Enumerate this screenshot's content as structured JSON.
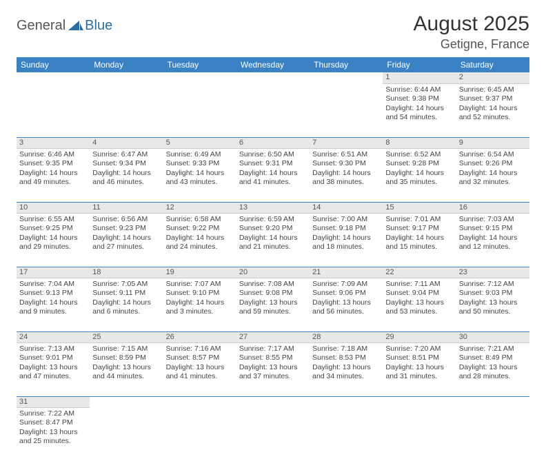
{
  "logo": {
    "general": "General",
    "blue": "Blue"
  },
  "title": "August 2025",
  "location": "Getigne, France",
  "colors": {
    "header_bg": "#3b82c4",
    "header_text": "#ffffff",
    "daynum_bg": "#e8e8e8",
    "rule": "#3b82c4",
    "text": "#444444"
  },
  "weekdays": [
    "Sunday",
    "Monday",
    "Tuesday",
    "Wednesday",
    "Thursday",
    "Friday",
    "Saturday"
  ],
  "weeks": [
    [
      null,
      null,
      null,
      null,
      null,
      {
        "n": "1",
        "sr": "Sunrise: 6:44 AM",
        "ss": "Sunset: 9:38 PM",
        "dl": "Daylight: 14 hours and 54 minutes."
      },
      {
        "n": "2",
        "sr": "Sunrise: 6:45 AM",
        "ss": "Sunset: 9:37 PM",
        "dl": "Daylight: 14 hours and 52 minutes."
      }
    ],
    [
      {
        "n": "3",
        "sr": "Sunrise: 6:46 AM",
        "ss": "Sunset: 9:35 PM",
        "dl": "Daylight: 14 hours and 49 minutes."
      },
      {
        "n": "4",
        "sr": "Sunrise: 6:47 AM",
        "ss": "Sunset: 9:34 PM",
        "dl": "Daylight: 14 hours and 46 minutes."
      },
      {
        "n": "5",
        "sr": "Sunrise: 6:49 AM",
        "ss": "Sunset: 9:33 PM",
        "dl": "Daylight: 14 hours and 43 minutes."
      },
      {
        "n": "6",
        "sr": "Sunrise: 6:50 AM",
        "ss": "Sunset: 9:31 PM",
        "dl": "Daylight: 14 hours and 41 minutes."
      },
      {
        "n": "7",
        "sr": "Sunrise: 6:51 AM",
        "ss": "Sunset: 9:30 PM",
        "dl": "Daylight: 14 hours and 38 minutes."
      },
      {
        "n": "8",
        "sr": "Sunrise: 6:52 AM",
        "ss": "Sunset: 9:28 PM",
        "dl": "Daylight: 14 hours and 35 minutes."
      },
      {
        "n": "9",
        "sr": "Sunrise: 6:54 AM",
        "ss": "Sunset: 9:26 PM",
        "dl": "Daylight: 14 hours and 32 minutes."
      }
    ],
    [
      {
        "n": "10",
        "sr": "Sunrise: 6:55 AM",
        "ss": "Sunset: 9:25 PM",
        "dl": "Daylight: 14 hours and 29 minutes."
      },
      {
        "n": "11",
        "sr": "Sunrise: 6:56 AM",
        "ss": "Sunset: 9:23 PM",
        "dl": "Daylight: 14 hours and 27 minutes."
      },
      {
        "n": "12",
        "sr": "Sunrise: 6:58 AM",
        "ss": "Sunset: 9:22 PM",
        "dl": "Daylight: 14 hours and 24 minutes."
      },
      {
        "n": "13",
        "sr": "Sunrise: 6:59 AM",
        "ss": "Sunset: 9:20 PM",
        "dl": "Daylight: 14 hours and 21 minutes."
      },
      {
        "n": "14",
        "sr": "Sunrise: 7:00 AM",
        "ss": "Sunset: 9:18 PM",
        "dl": "Daylight: 14 hours and 18 minutes."
      },
      {
        "n": "15",
        "sr": "Sunrise: 7:01 AM",
        "ss": "Sunset: 9:17 PM",
        "dl": "Daylight: 14 hours and 15 minutes."
      },
      {
        "n": "16",
        "sr": "Sunrise: 7:03 AM",
        "ss": "Sunset: 9:15 PM",
        "dl": "Daylight: 14 hours and 12 minutes."
      }
    ],
    [
      {
        "n": "17",
        "sr": "Sunrise: 7:04 AM",
        "ss": "Sunset: 9:13 PM",
        "dl": "Daylight: 14 hours and 9 minutes."
      },
      {
        "n": "18",
        "sr": "Sunrise: 7:05 AM",
        "ss": "Sunset: 9:11 PM",
        "dl": "Daylight: 14 hours and 6 minutes."
      },
      {
        "n": "19",
        "sr": "Sunrise: 7:07 AM",
        "ss": "Sunset: 9:10 PM",
        "dl": "Daylight: 14 hours and 3 minutes."
      },
      {
        "n": "20",
        "sr": "Sunrise: 7:08 AM",
        "ss": "Sunset: 9:08 PM",
        "dl": "Daylight: 13 hours and 59 minutes."
      },
      {
        "n": "21",
        "sr": "Sunrise: 7:09 AM",
        "ss": "Sunset: 9:06 PM",
        "dl": "Daylight: 13 hours and 56 minutes."
      },
      {
        "n": "22",
        "sr": "Sunrise: 7:11 AM",
        "ss": "Sunset: 9:04 PM",
        "dl": "Daylight: 13 hours and 53 minutes."
      },
      {
        "n": "23",
        "sr": "Sunrise: 7:12 AM",
        "ss": "Sunset: 9:03 PM",
        "dl": "Daylight: 13 hours and 50 minutes."
      }
    ],
    [
      {
        "n": "24",
        "sr": "Sunrise: 7:13 AM",
        "ss": "Sunset: 9:01 PM",
        "dl": "Daylight: 13 hours and 47 minutes."
      },
      {
        "n": "25",
        "sr": "Sunrise: 7:15 AM",
        "ss": "Sunset: 8:59 PM",
        "dl": "Daylight: 13 hours and 44 minutes."
      },
      {
        "n": "26",
        "sr": "Sunrise: 7:16 AM",
        "ss": "Sunset: 8:57 PM",
        "dl": "Daylight: 13 hours and 41 minutes."
      },
      {
        "n": "27",
        "sr": "Sunrise: 7:17 AM",
        "ss": "Sunset: 8:55 PM",
        "dl": "Daylight: 13 hours and 37 minutes."
      },
      {
        "n": "28",
        "sr": "Sunrise: 7:18 AM",
        "ss": "Sunset: 8:53 PM",
        "dl": "Daylight: 13 hours and 34 minutes."
      },
      {
        "n": "29",
        "sr": "Sunrise: 7:20 AM",
        "ss": "Sunset: 8:51 PM",
        "dl": "Daylight: 13 hours and 31 minutes."
      },
      {
        "n": "30",
        "sr": "Sunrise: 7:21 AM",
        "ss": "Sunset: 8:49 PM",
        "dl": "Daylight: 13 hours and 28 minutes."
      }
    ],
    [
      {
        "n": "31",
        "sr": "Sunrise: 7:22 AM",
        "ss": "Sunset: 8:47 PM",
        "dl": "Daylight: 13 hours and 25 minutes."
      },
      null,
      null,
      null,
      null,
      null,
      null
    ]
  ]
}
